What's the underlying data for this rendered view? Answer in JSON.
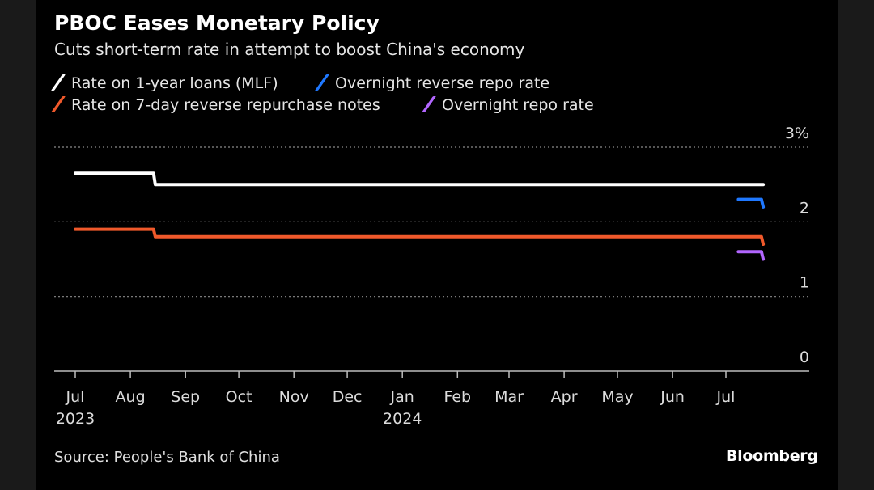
{
  "title": "PBOC Eases Monetary Policy",
  "subtitle": "Cuts short-term rate in attempt to boost China's economy",
  "source": "Source: People's Bank of China",
  "logo": "Bloomberg",
  "chart_data": {
    "type": "line",
    "title": "PBOC Eases Monetary Policy",
    "subtitle": "Cuts short-term rate in attempt to boost China's economy",
    "legend_placement": "top-left",
    "grid": true,
    "ylim": [
      0,
      3
    ],
    "y_ticks": [
      {
        "value": 0,
        "label": "0"
      },
      {
        "value": 1,
        "label": "1"
      },
      {
        "value": 2,
        "label": "2"
      },
      {
        "value": 3,
        "label": "3%"
      }
    ],
    "x_ticks": [
      {
        "date": "2023-07-01",
        "label": "Jul",
        "sub": "2023"
      },
      {
        "date": "2023-08-01",
        "label": "Aug"
      },
      {
        "date": "2023-09-01",
        "label": "Sep"
      },
      {
        "date": "2023-10-01",
        "label": "Oct"
      },
      {
        "date": "2023-11-01",
        "label": "Nov"
      },
      {
        "date": "2023-12-01",
        "label": "Dec"
      },
      {
        "date": "2024-01-01",
        "label": "Jan",
        "sub": "2024"
      },
      {
        "date": "2024-02-01",
        "label": "Feb"
      },
      {
        "date": "2024-03-01",
        "label": "Mar"
      },
      {
        "date": "2024-04-01",
        "label": "Apr"
      },
      {
        "date": "2024-05-01",
        "label": "May"
      },
      {
        "date": "2024-06-01",
        "label": "Jun"
      },
      {
        "date": "2024-07-01",
        "label": "Jul"
      }
    ],
    "xlim": [
      "2023-06-20",
      "2024-08-27"
    ],
    "series": [
      {
        "name": "Rate on 1-year loans (MLF)",
        "color": "#ffffff",
        "points": [
          [
            "2023-07-01",
            2.65
          ],
          [
            "2023-08-14",
            2.65
          ],
          [
            "2023-08-15",
            2.5
          ],
          [
            "2024-07-22",
            2.5
          ]
        ]
      },
      {
        "name": "Overnight reverse repo rate",
        "color": "#1f78ff",
        "points": [
          [
            "2024-07-08",
            2.3
          ],
          [
            "2024-07-21",
            2.3
          ],
          [
            "2024-07-22",
            2.2
          ]
        ]
      },
      {
        "name": "Rate on 7-day reverse repurchase notes",
        "color": "#f0592b",
        "points": [
          [
            "2023-07-01",
            1.9
          ],
          [
            "2023-08-14",
            1.9
          ],
          [
            "2023-08-15",
            1.8
          ],
          [
            "2024-07-21",
            1.8
          ],
          [
            "2024-07-22",
            1.7
          ]
        ]
      },
      {
        "name": "Overnight repo rate",
        "color": "#b266ff",
        "points": [
          [
            "2024-07-08",
            1.6
          ],
          [
            "2024-07-21",
            1.6
          ],
          [
            "2024-07-22",
            1.5
          ]
        ]
      }
    ]
  }
}
